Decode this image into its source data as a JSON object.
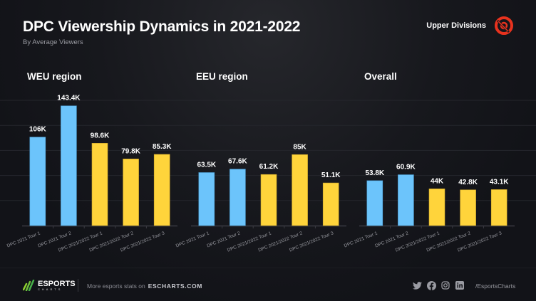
{
  "header": {
    "title": "DPC Viewership Dynamics in 2021-2022",
    "subtitle": "By Average Viewers",
    "division": "Upper Divisions",
    "logo_icon": "dota-pro-circuit-logo"
  },
  "colors": {
    "dpc2021": "#6cc4fb",
    "dpc2122": "#ffd43b",
    "background": "#121318",
    "logo_red": "#e8321e"
  },
  "chart_data": [
    {
      "type": "bar",
      "title": "WEU region",
      "categories": [
        "DPC 2021 Tour 1",
        "DPC 2021 Tour 2",
        "DPC 2021/2022 Tour 1",
        "DPC 2021/2022 Tour 2",
        "DPC 2021/2022 Tour 3"
      ],
      "values": [
        106000,
        143400,
        98600,
        79800,
        85300
      ],
      "labels": [
        "106K",
        "143.4K",
        "98.6K",
        "79.8K",
        "85.3K"
      ],
      "xlabel": "",
      "ylabel": "Average Viewers",
      "ylim": [
        0,
        150000
      ],
      "grid": true
    },
    {
      "type": "bar",
      "title": "EEU region",
      "categories": [
        "DPC 2021 Tour 1",
        "DPC 2021 Tour 2",
        "DPC 2021/2022 Tour 1",
        "DPC 2021/2022 Tour 2",
        "DPC 2021/2022 Tour 3"
      ],
      "values": [
        63500,
        67600,
        61200,
        85000,
        51100
      ],
      "labels": [
        "63.5K",
        "67.6K",
        "61.2K",
        "85K",
        "51.1K"
      ],
      "xlabel": "",
      "ylabel": "Average Viewers",
      "ylim": [
        0,
        150000
      ],
      "grid": true
    },
    {
      "type": "bar",
      "title": "Overall",
      "categories": [
        "DPC 2021 Tour 1",
        "DPC 2021 Tour 2",
        "DPC 2021/2022 Tour 1",
        "DPC 2021/2022 Tour 2",
        "DPC 2021/2022 Tour 3"
      ],
      "values": [
        53800,
        60900,
        44000,
        42800,
        43100
      ],
      "labels": [
        "53.8K",
        "60.9K",
        "44K",
        "42.8K",
        "43.1K"
      ],
      "xlabel": "",
      "ylabel": "Average Viewers",
      "ylim": [
        0,
        150000
      ],
      "grid": true
    }
  ],
  "footer": {
    "brand": "ESPORTS",
    "brand_sub": "CHARTS",
    "more_text": "More esports stats on",
    "site": "ESCHARTS.COM",
    "social_icons": [
      "twitter-icon",
      "facebook-icon",
      "instagram-icon",
      "linkedin-icon"
    ],
    "handle": "/EsportsCharts"
  }
}
